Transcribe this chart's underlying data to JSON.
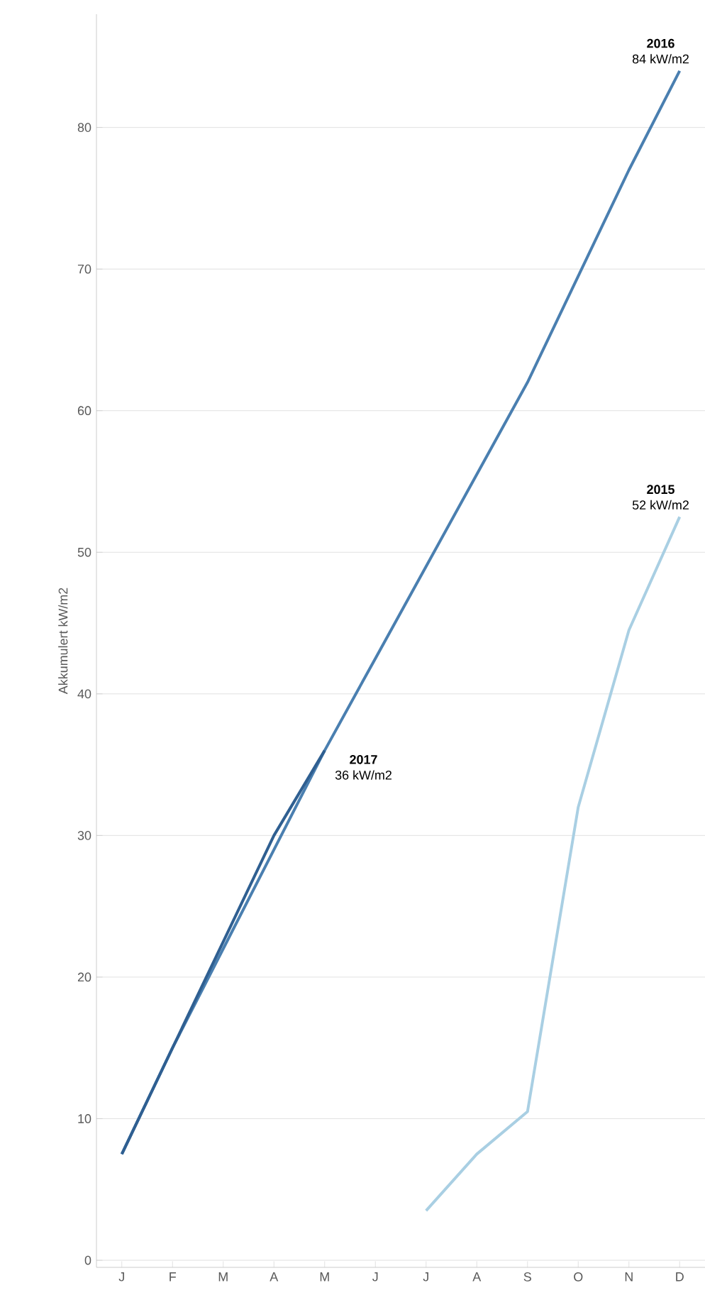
{
  "chart_data": {
    "type": "line",
    "ylabel": "Akkumulert kW/m2",
    "categories": [
      "J",
      "F",
      "M",
      "A",
      "M",
      "J",
      "J",
      "A",
      "S",
      "O",
      "N",
      "D"
    ],
    "series": [
      {
        "name": "2016",
        "color": "#4a7fb0",
        "values": [
          7.5,
          15,
          22,
          29,
          36,
          42.5,
          49,
          55.5,
          62,
          69.5,
          77,
          84
        ],
        "value_labels": [
          null,
          null,
          null,
          null,
          null,
          null,
          null,
          null,
          null,
          null,
          null,
          "84 kW/m2"
        ]
      },
      {
        "name": "2015",
        "color": "#a9cfe3",
        "values": [
          null,
          null,
          null,
          null,
          null,
          null,
          3.5,
          7.5,
          10.5,
          32,
          44.5,
          52.5
        ],
        "value_labels": [
          null,
          null,
          null,
          null,
          null,
          null,
          null,
          null,
          null,
          null,
          null,
          "52 kW/m2"
        ]
      },
      {
        "name": "2017",
        "color": "#2f5f91",
        "values": [
          7.5,
          15,
          22.5,
          30,
          36,
          null,
          null,
          null,
          null,
          null,
          null,
          null
        ],
        "value_labels": [
          null,
          null,
          null,
          null,
          "36 kW/m2",
          null,
          null,
          null,
          null,
          null,
          null,
          null
        ]
      }
    ],
    "ylim": [
      -0.5,
      88
    ],
    "yticks": [
      0,
      10,
      20,
      30,
      40,
      50,
      60,
      70,
      80
    ],
    "grid": "y",
    "marker": "none",
    "line_style": "solid"
  }
}
